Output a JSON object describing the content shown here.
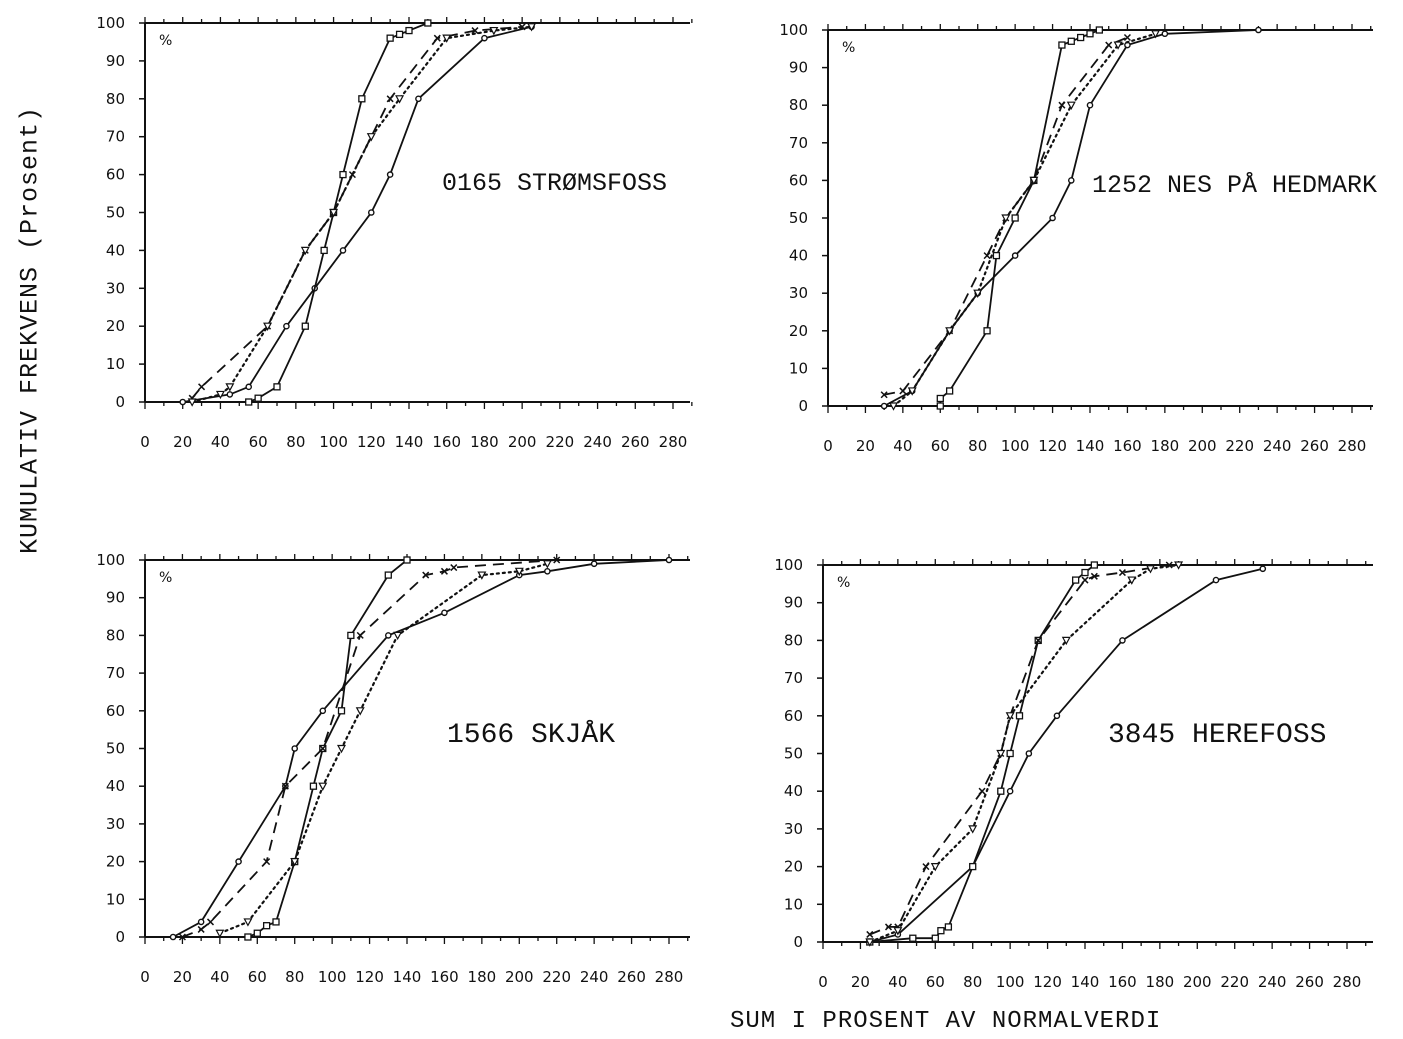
{
  "figure": {
    "ylabel": "KUMULATIV FREKVENS (Prosent)",
    "xlabel": "SUM I PROSENT AV NORMALVERDI"
  },
  "chart_data": [
    {
      "type": "line",
      "title": "0165 STRØMSFOSS",
      "unit_label": "%",
      "xlim": [
        0,
        290
      ],
      "ylim": [
        0,
        100
      ],
      "xticks": [
        0,
        20,
        40,
        60,
        80,
        100,
        120,
        140,
        160,
        180,
        200,
        220,
        240,
        260,
        280
      ],
      "yticks": [
        0,
        10,
        20,
        30,
        40,
        50,
        60,
        70,
        80,
        90,
        100
      ],
      "grid": false,
      "series": [
        {
          "marker": "circle",
          "style": "solid",
          "x": [
            20,
            45,
            55,
            75,
            90,
            105,
            120,
            130,
            145,
            180,
            205
          ],
          "y": [
            0,
            2,
            4,
            20,
            30,
            40,
            50,
            60,
            80,
            96,
            99
          ]
        },
        {
          "marker": "square",
          "style": "solid",
          "x": [
            55,
            60,
            70,
            85,
            95,
            100,
            105,
            115,
            130,
            135,
            140,
            150
          ],
          "y": [
            0,
            1,
            4,
            20,
            40,
            50,
            60,
            80,
            96,
            97,
            98,
            100
          ]
        },
        {
          "marker": "cross",
          "style": "dashed",
          "x": [
            25,
            30,
            65,
            85,
            100,
            110,
            130,
            155,
            175,
            200
          ],
          "y": [
            1,
            4,
            20,
            40,
            50,
            60,
            80,
            96,
            98,
            99
          ]
        },
        {
          "marker": "triangle",
          "style": "dotted",
          "x": [
            25,
            40,
            45,
            65,
            85,
            100,
            120,
            135,
            160,
            185,
            205
          ],
          "y": [
            0,
            2,
            4,
            20,
            40,
            50,
            70,
            80,
            96,
            98,
            99
          ]
        }
      ]
    },
    {
      "type": "line",
      "title": "1252 NES PÅ HEDMARK",
      "unit_label": "%",
      "xlim": [
        0,
        290
      ],
      "ylim": [
        0,
        100
      ],
      "xticks": [
        0,
        20,
        40,
        60,
        80,
        100,
        120,
        140,
        160,
        180,
        200,
        220,
        240,
        260,
        280
      ],
      "yticks": [
        0,
        10,
        20,
        30,
        40,
        50,
        60,
        70,
        80,
        90,
        100
      ],
      "grid": false,
      "series": [
        {
          "marker": "circle",
          "style": "solid",
          "x": [
            30,
            45,
            65,
            80,
            100,
            120,
            130,
            140,
            160,
            180,
            230
          ],
          "y": [
            0,
            4,
            20,
            30,
            40,
            50,
            60,
            80,
            96,
            99,
            100
          ]
        },
        {
          "marker": "square",
          "style": "solid",
          "x": [
            60,
            60,
            65,
            85,
            90,
            100,
            110,
            125,
            130,
            135,
            140,
            145
          ],
          "y": [
            0,
            2,
            4,
            20,
            40,
            50,
            60,
            96,
            97,
            98,
            99,
            100
          ]
        },
        {
          "marker": "cross",
          "style": "dashed",
          "x": [
            30,
            40,
            65,
            85,
            95,
            110,
            125,
            150,
            160
          ],
          "y": [
            3,
            4,
            20,
            40,
            50,
            60,
            80,
            96,
            98
          ]
        },
        {
          "marker": "triangle",
          "style": "dotted",
          "x": [
            35,
            45,
            65,
            80,
            95,
            110,
            130,
            155,
            175
          ],
          "y": [
            0,
            4,
            20,
            30,
            50,
            60,
            80,
            96,
            99
          ]
        }
      ]
    },
    {
      "type": "line",
      "title": "1566 SKJÅK",
      "unit_label": "%",
      "xlim": [
        0,
        290
      ],
      "ylim": [
        0,
        100
      ],
      "xticks": [
        0,
        20,
        40,
        60,
        80,
        100,
        120,
        140,
        160,
        180,
        200,
        220,
        240,
        260,
        280
      ],
      "yticks": [
        0,
        10,
        20,
        30,
        40,
        50,
        60,
        70,
        80,
        90,
        100
      ],
      "grid": false,
      "series": [
        {
          "marker": "circle",
          "style": "solid",
          "x": [
            15,
            30,
            50,
            75,
            80,
            95,
            130,
            160,
            200,
            215,
            240,
            280
          ],
          "y": [
            0,
            4,
            20,
            40,
            50,
            60,
            80,
            86,
            96,
            97,
            99,
            100
          ]
        },
        {
          "marker": "square",
          "style": "solid",
          "x": [
            55,
            60,
            65,
            70,
            80,
            90,
            95,
            105,
            110,
            130,
            140
          ],
          "y": [
            0,
            1,
            3,
            4,
            20,
            40,
            50,
            60,
            80,
            96,
            100
          ]
        },
        {
          "marker": "cross",
          "style": "dashed",
          "x": [
            20,
            30,
            35,
            65,
            75,
            95,
            115,
            150,
            160,
            165,
            220
          ],
          "y": [
            0,
            2,
            4,
            20,
            40,
            50,
            80,
            96,
            97,
            98,
            100
          ]
        },
        {
          "marker": "triangle",
          "style": "dotted",
          "x": [
            40,
            55,
            80,
            95,
            105,
            115,
            135,
            180,
            200,
            215
          ],
          "y": [
            1,
            4,
            20,
            40,
            50,
            60,
            80,
            96,
            97,
            99
          ]
        }
      ]
    },
    {
      "type": "line",
      "title": "3845 HEREFOSS",
      "unit_label": "%",
      "xlim": [
        0,
        290
      ],
      "ylim": [
        0,
        100
      ],
      "xticks": [
        0,
        20,
        40,
        60,
        80,
        100,
        120,
        140,
        160,
        180,
        200,
        220,
        240,
        260,
        280
      ],
      "yticks": [
        0,
        10,
        20,
        30,
        40,
        50,
        60,
        70,
        80,
        90,
        100
      ],
      "grid": false,
      "series": [
        {
          "marker": "circle",
          "style": "solid",
          "x": [
            25,
            40,
            80,
            100,
            110,
            125,
            160,
            210,
            235
          ],
          "y": [
            0,
            2,
            20,
            40,
            50,
            60,
            80,
            96,
            99
          ]
        },
        {
          "marker": "square",
          "style": "solid",
          "x": [
            25,
            48,
            60,
            63,
            67,
            80,
            95,
            100,
            105,
            115,
            135,
            140,
            145
          ],
          "y": [
            0,
            1,
            1,
            3,
            4,
            20,
            40,
            50,
            60,
            80,
            96,
            98,
            100
          ]
        },
        {
          "marker": "cross",
          "style": "dashed",
          "x": [
            25,
            35,
            40,
            55,
            85,
            95,
            100,
            115,
            140,
            145,
            160,
            185
          ],
          "y": [
            2,
            4,
            4,
            20,
            40,
            50,
            60,
            80,
            96,
            97,
            98,
            100
          ]
        },
        {
          "marker": "triangle",
          "style": "dotted",
          "x": [
            25,
            40,
            60,
            80,
            95,
            100,
            130,
            165,
            175,
            190
          ],
          "y": [
            0,
            3,
            20,
            30,
            50,
            60,
            80,
            96,
            99,
            100
          ]
        }
      ]
    }
  ]
}
